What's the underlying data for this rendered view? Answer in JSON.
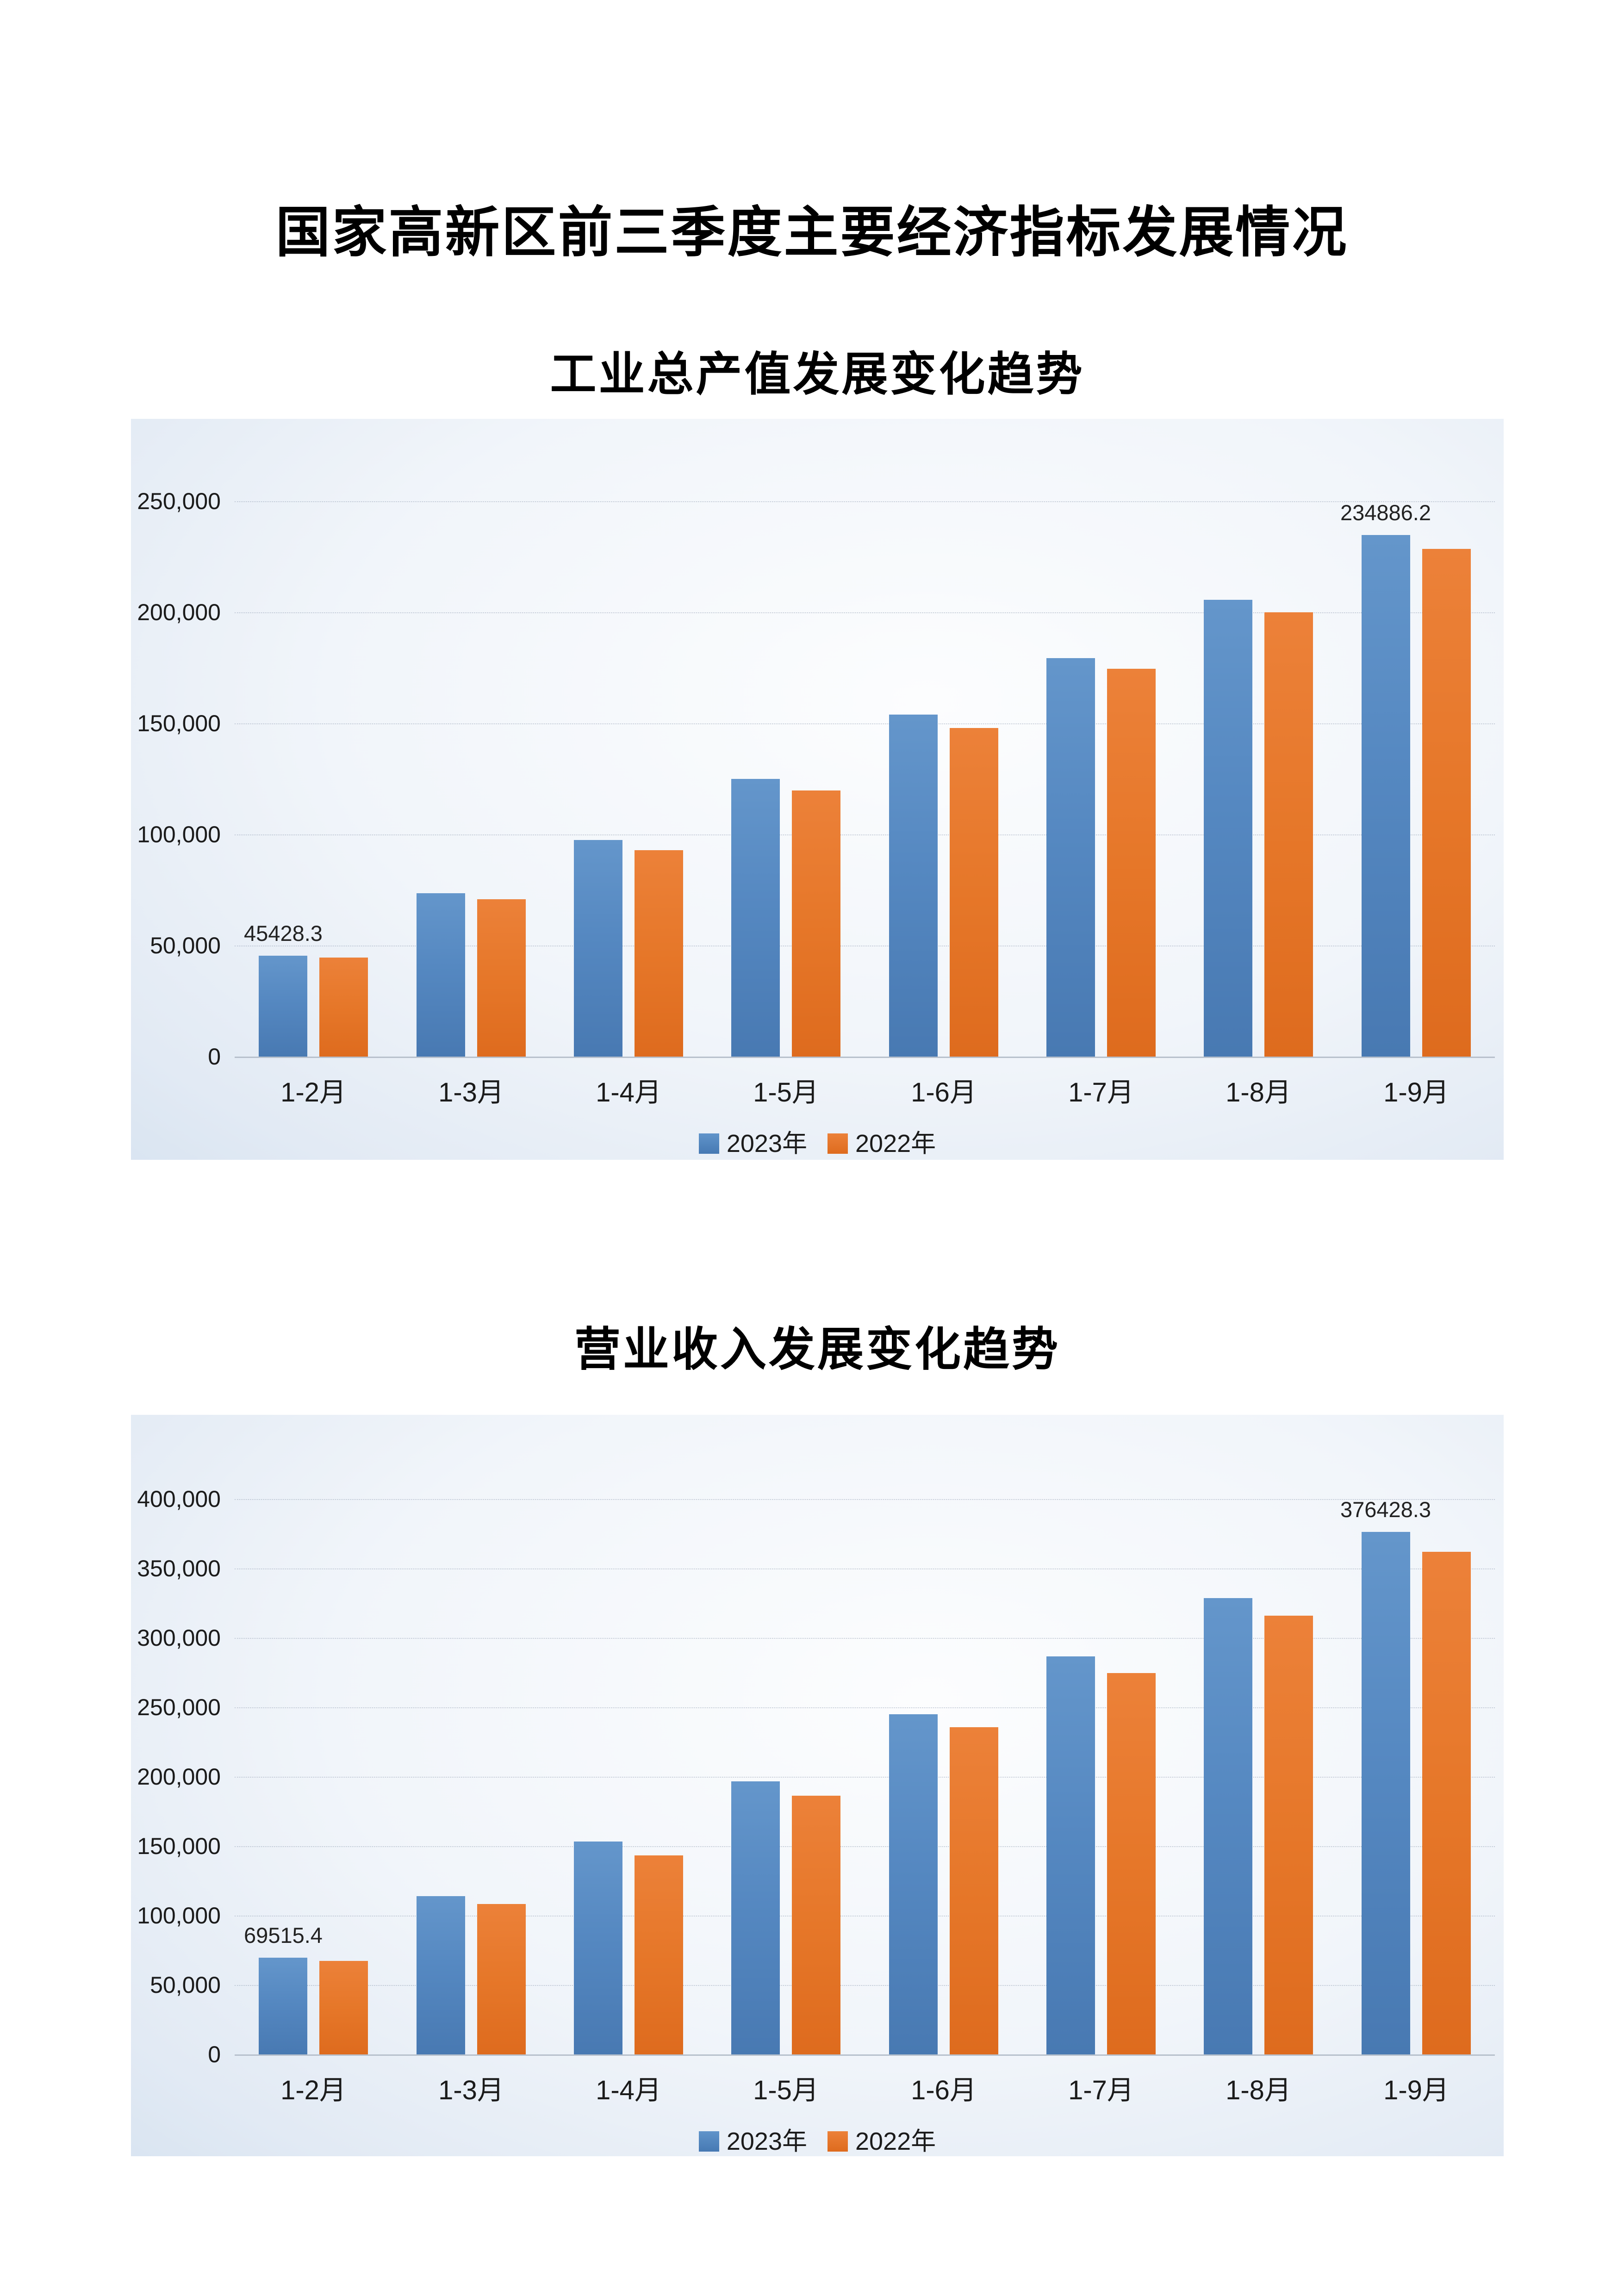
{
  "page": {
    "title": "国家高新区前三季度主要经济指标发展情况"
  },
  "colors": {
    "series_2023": "#4E82BC",
    "series_2022": "#E8762C",
    "panel_edge": "#C7D9EC",
    "panel_center": "#FCFDFE",
    "gridline": "#99A6B8",
    "text": "#1B1B1B"
  },
  "chart_data": [
    {
      "type": "bar",
      "title": "工业总产值发展变化趋势",
      "categories": [
        "1-2月",
        "1-3月",
        "1-4月",
        "1-5月",
        "1-6月",
        "1-7月",
        "1-8月",
        "1-9月"
      ],
      "series": [
        {
          "name": "2023年",
          "color": "#4E82BC",
          "values": [
            45428.3,
            73500,
            97500,
            125000,
            154000,
            179400,
            205600,
            234886.2
          ]
        },
        {
          "name": "2022年",
          "color": "#E8762C",
          "values": [
            44600,
            70800,
            93000,
            119800,
            148000,
            174600,
            200000,
            228500
          ]
        }
      ],
      "yticks": [
        "0",
        "50,000",
        "100,000",
        "150,000",
        "200,000",
        "250,000"
      ],
      "ylim": [
        0,
        250000
      ],
      "ytick_interval": 50000,
      "grid": true,
      "legend_position": "bottom",
      "bar_labels": [
        {
          "cat": 0,
          "series": 0,
          "text": "45428.3"
        },
        {
          "cat": 7,
          "series": 0,
          "text": "234886.2"
        }
      ]
    },
    {
      "type": "bar",
      "title": "营业收入发展变化趋势",
      "categories": [
        "1-2月",
        "1-3月",
        "1-4月",
        "1-5月",
        "1-6月",
        "1-7月",
        "1-8月",
        "1-9月"
      ],
      "series": [
        {
          "name": "2023年",
          "color": "#4E82BC",
          "values": [
            69515.4,
            114000,
            153300,
            196800,
            245000,
            286500,
            328700,
            376428.3
          ]
        },
        {
          "name": "2022年",
          "color": "#E8762C",
          "values": [
            67300,
            108200,
            143300,
            186400,
            235500,
            274800,
            316000,
            362000
          ]
        }
      ],
      "yticks": [
        "0",
        "50,000",
        "100,000",
        "150,000",
        "200,000",
        "250,000",
        "300,000",
        "350,000",
        "400,000"
      ],
      "ylim": [
        0,
        400000
      ],
      "ytick_interval": 50000,
      "grid": true,
      "legend_position": "bottom",
      "bar_labels": [
        {
          "cat": 0,
          "series": 0,
          "text": "69515.4"
        },
        {
          "cat": 7,
          "series": 0,
          "text": "376428.3"
        }
      ]
    }
  ]
}
